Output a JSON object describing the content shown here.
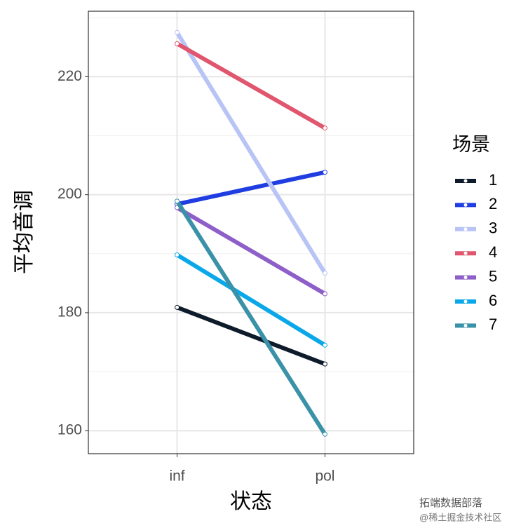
{
  "chart_data": {
    "type": "line",
    "x_label": "状态",
    "y_label": "平均音调",
    "legend_title": "场景",
    "categories": [
      "inf",
      "pol"
    ],
    "series": [
      {
        "name": "1",
        "color": "#0d1b2a",
        "values": [
          180.9,
          171.3
        ]
      },
      {
        "name": "2",
        "color": "#1f3de0",
        "values": [
          198.4,
          203.8
        ]
      },
      {
        "name": "3",
        "color": "#b8c4f5",
        "values": [
          227.5,
          186.7
        ]
      },
      {
        "name": "4",
        "color": "#e0566e",
        "values": [
          225.6,
          211.3
        ]
      },
      {
        "name": "5",
        "color": "#8e5fc8",
        "values": [
          197.8,
          183.2
        ]
      },
      {
        "name": "6",
        "color": "#0aa8e8",
        "values": [
          189.8,
          174.5
        ]
      },
      {
        "name": "7",
        "color": "#3a92a8",
        "values": [
          198.9,
          159.4
        ]
      }
    ],
    "ylim": [
      156.1,
      231.1
    ],
    "yticks": [
      160,
      180,
      200,
      220
    ],
    "y_minor_ticks": [
      170,
      190,
      210,
      230
    ],
    "grid": true,
    "legend_position": "right"
  },
  "watermark": {
    "line1": "拓端数据部落",
    "line2": "@稀土掘金技术社区"
  }
}
